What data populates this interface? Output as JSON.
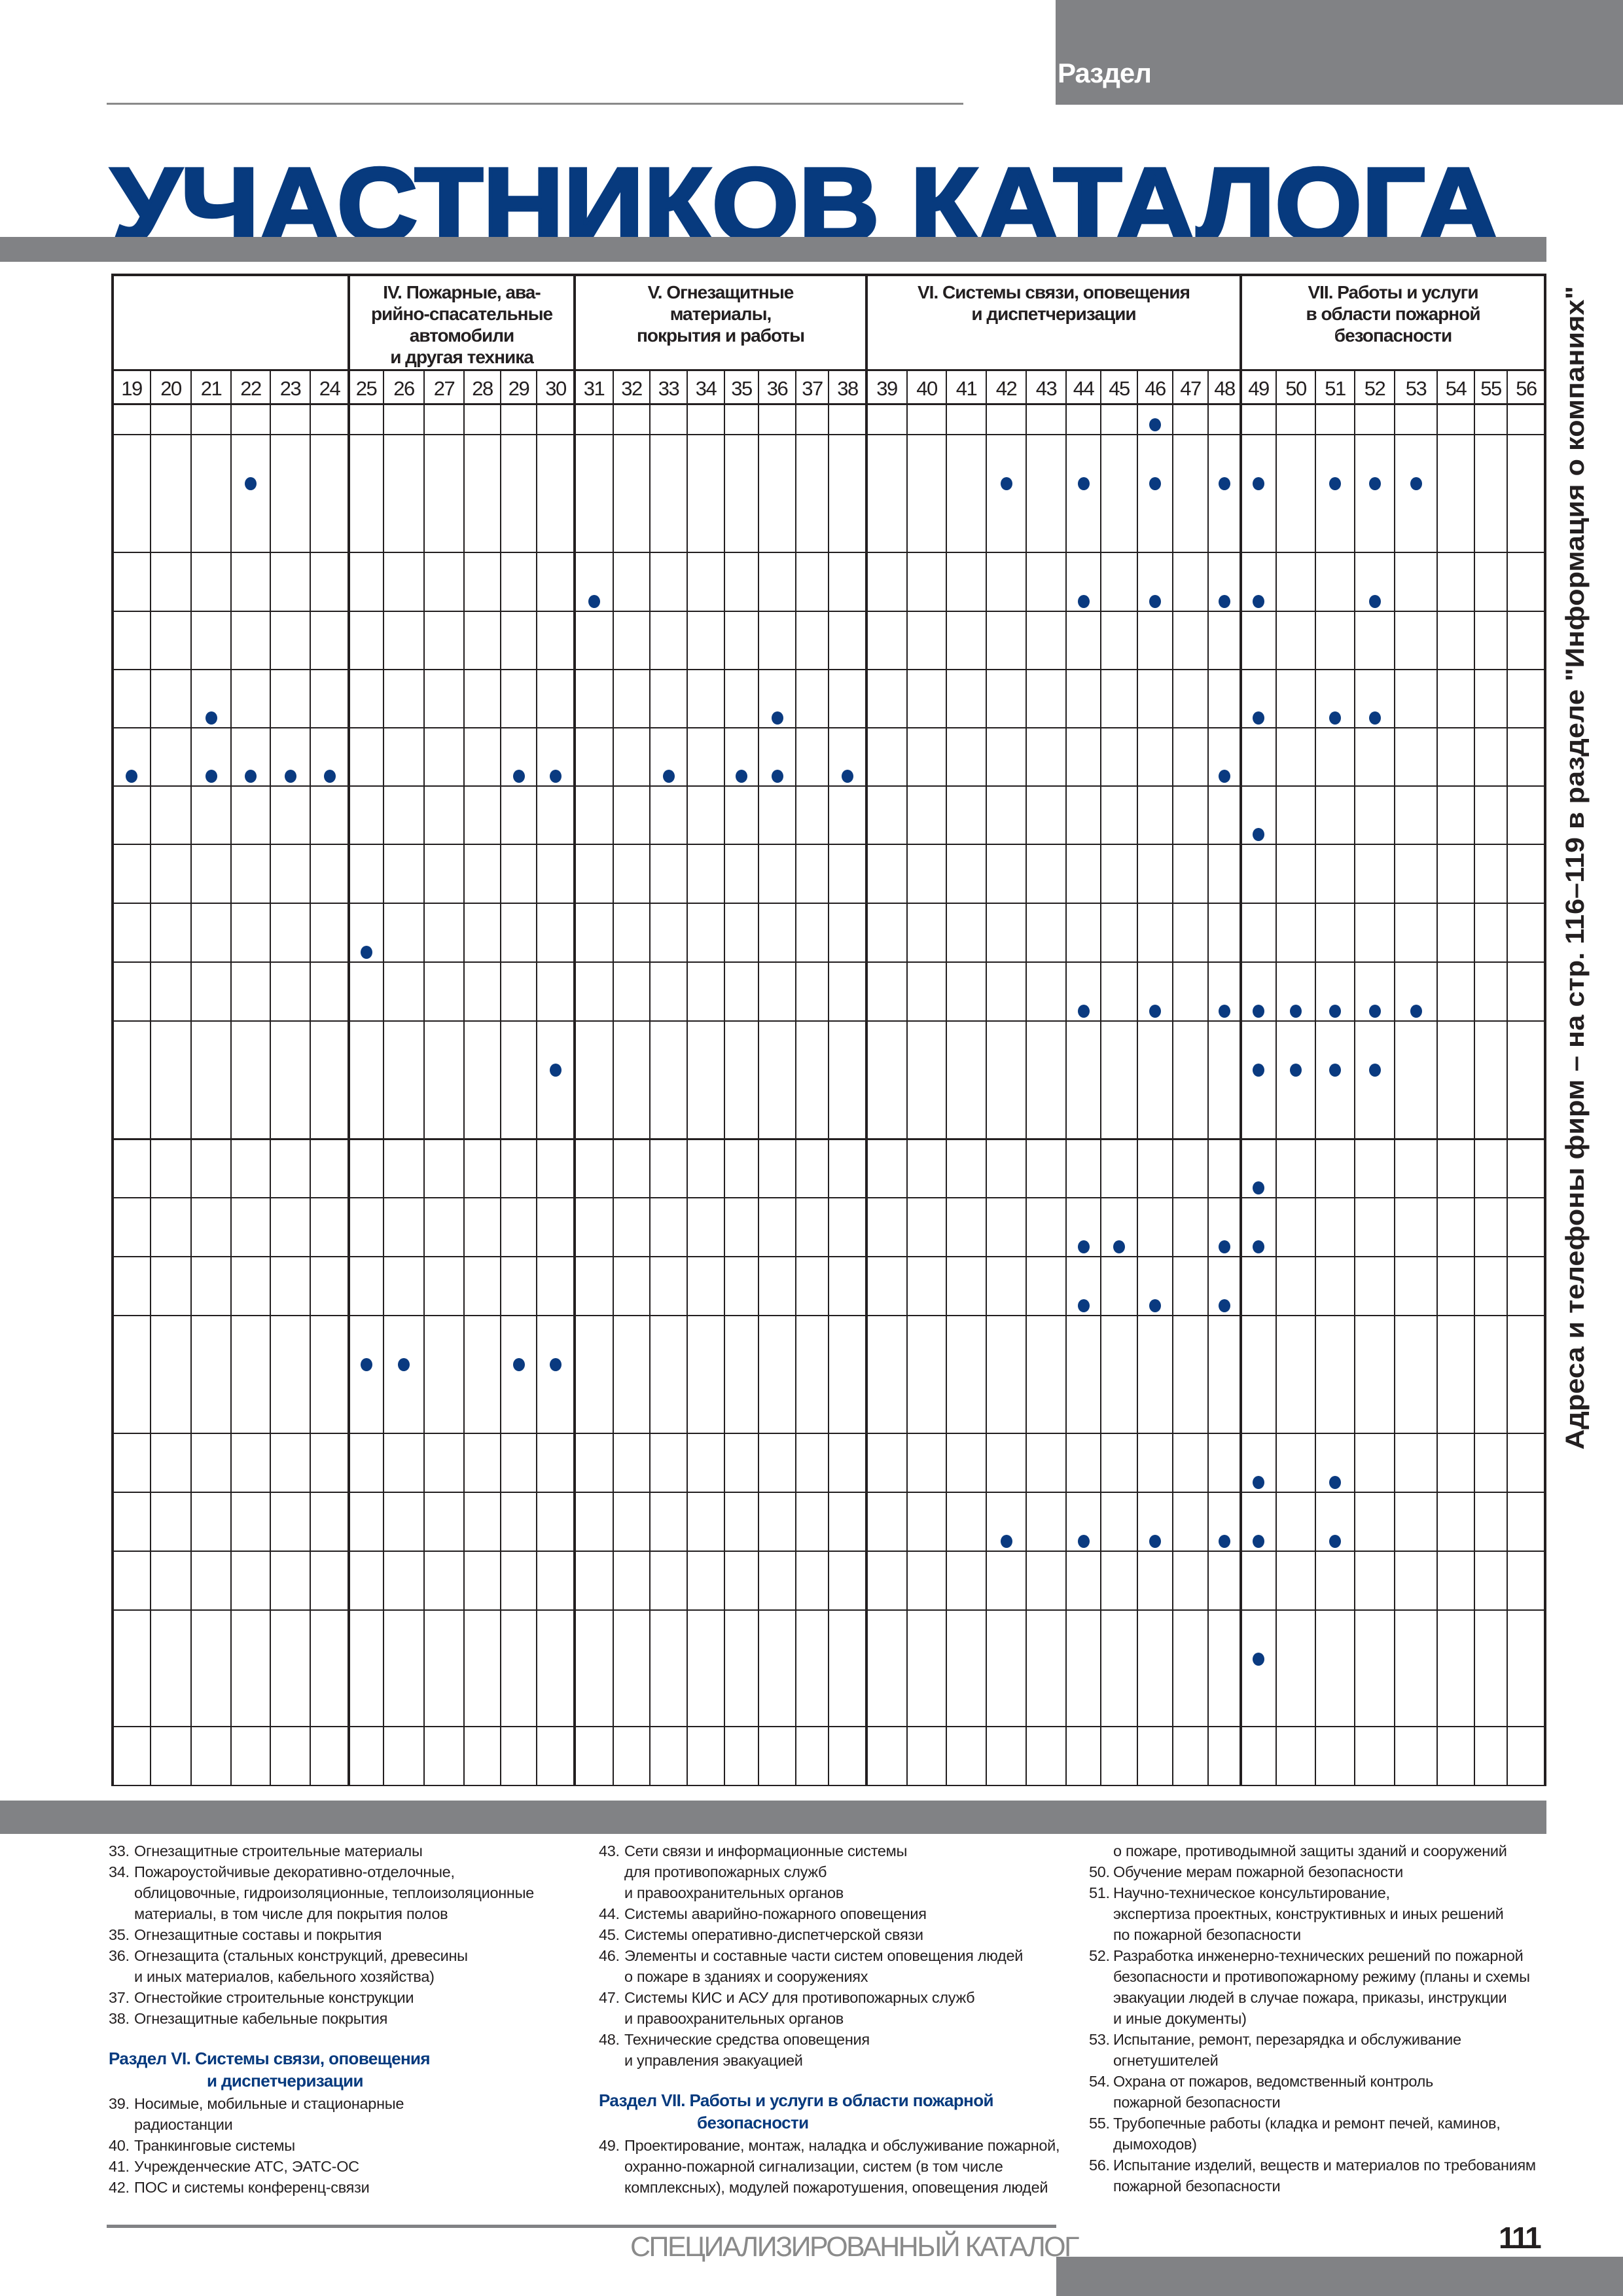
{
  "header": {
    "section_label": "Раздел",
    "title": "УЧАСТНИКОВ КАТАЛОГА",
    "side_note": "Адреса и телефоны фирм – на стр. 116–119 в разделе \"Информация о компаниях\""
  },
  "colors": {
    "accent_blue": "#073a7e",
    "dot": "#0a3a80",
    "band_gray": "#818285"
  },
  "table": {
    "groups": [
      {
        "label": "",
        "first": 19,
        "last": 24
      },
      {
        "label": "IV. Пожарные, ава-\nрийно-спасательные\nавтомобили\nи другая техника",
        "first": 25,
        "last": 30
      },
      {
        "label": "V. Огнезащитные\nматериалы,\nпокрытия и работы",
        "first": 31,
        "last": 38
      },
      {
        "label": "VI. Системы связи, оповещения\nи диспетчеризации",
        "first": 39,
        "last": 48
      },
      {
        "label": "VII. Работы и услуги\nв области пожарной\nбезопасности",
        "first": 49,
        "last": 56
      }
    ],
    "columns": [
      "19",
      "20",
      "21",
      "22",
      "23",
      "24",
      "25",
      "26",
      "27",
      "28",
      "29",
      "30",
      "31",
      "32",
      "33",
      "34",
      "35",
      "36",
      "37",
      "38",
      "39",
      "40",
      "41",
      "42",
      "43",
      "44",
      "45",
      "46",
      "47",
      "48",
      "49",
      "50",
      "51",
      "52",
      "53",
      "54",
      "55",
      "56"
    ],
    "rows_marked_columns": [
      [
        46
      ],
      [
        22,
        42,
        44,
        46,
        48,
        49,
        51,
        52,
        53
      ],
      [
        31,
        44,
        46,
        48,
        49,
        52
      ],
      [],
      [
        21,
        36,
        49,
        51,
        52
      ],
      [
        19,
        21,
        22,
        23,
        24,
        29,
        30,
        33,
        35,
        36,
        38,
        48
      ],
      [
        49
      ],
      [],
      [
        25
      ],
      [
        44,
        46,
        48,
        49,
        50,
        51,
        52,
        53
      ],
      [
        30,
        49,
        50,
        51,
        52
      ],
      [
        49
      ],
      [
        44,
        45,
        48,
        49
      ],
      [
        44,
        46,
        48
      ],
      [
        25,
        26,
        29,
        30
      ],
      [
        49,
        51
      ],
      [
        42,
        44,
        46,
        48,
        49,
        51
      ],
      [],
      [
        49
      ],
      []
    ]
  },
  "legend": {
    "columns": [
      [
        {
          "num": "33.",
          "lines": [
            "Огнезащитные строительные материалы"
          ]
        },
        {
          "num": "34.",
          "lines": [
            "Пожароустойчивые декоративно-отделочные,",
            "облицовочные, гидроизоляционные, теплоизоляционные",
            "материалы, в том числе для покрытия полов"
          ]
        },
        {
          "num": "35.",
          "lines": [
            "Огнезащитные составы и покрытия"
          ]
        },
        {
          "num": "36.",
          "lines": [
            "Огнезащита (стальных конструкций, древесины",
            "и иных материалов, кабельного хозяйства)"
          ]
        },
        {
          "num": "37.",
          "lines": [
            "Огнестойкие строительные конструкции"
          ]
        },
        {
          "num": "38.",
          "lines": [
            "Огнезащитные кабельные покрытия"
          ]
        },
        {
          "heading": [
            "Раздел VI. Системы связи, оповещения",
            "и диспетчеризации"
          ]
        },
        {
          "num": "39.",
          "lines": [
            "Носимые, мобильные и стационарные",
            "радиостанции"
          ]
        },
        {
          "num": "40.",
          "lines": [
            "Транкинговые системы"
          ]
        },
        {
          "num": "41.",
          "lines": [
            "Учрежденческие АТС, ЭАТС-ОС"
          ]
        },
        {
          "num": "42.",
          "lines": [
            "ПОС и системы конференц-связи"
          ]
        }
      ],
      [
        {
          "num": "43.",
          "lines": [
            "Сети связи и информационные системы",
            "для противопожарных служб",
            "и правоохранительных органов"
          ]
        },
        {
          "num": "44.",
          "lines": [
            "Системы аварийно-пожарного оповещения"
          ]
        },
        {
          "num": "45.",
          "lines": [
            "Системы оперативно-диспетчерской связи"
          ]
        },
        {
          "num": "46.",
          "lines": [
            "Элементы и составные части систем оповещения людей",
            "о пожаре в зданиях и сооружениях"
          ]
        },
        {
          "num": "47.",
          "lines": [
            "Системы КИС и АСУ для противопожарных служб",
            "и правоохранительных органов"
          ]
        },
        {
          "num": "48.",
          "lines": [
            "Технические средства оповещения",
            "и управления эвакуацией"
          ]
        },
        {
          "heading": [
            "Раздел VII. Работы и услуги в области пожарной",
            "безопасности"
          ]
        },
        {
          "num": "49.",
          "lines": [
            "Проектирование, монтаж, наладка и обслуживание пожарной,",
            "охранно-пожарной сигнализации, систем (в том числе",
            "комплексных), модулей пожаротушения, оповещения людей"
          ]
        }
      ],
      [
        {
          "num": "",
          "lines": [
            "о пожаре, противодымной защиты  зданий и сооружений"
          ]
        },
        {
          "num": "50.",
          "lines": [
            "Обучение мерам пожарной безопасности"
          ]
        },
        {
          "num": "51.",
          "lines": [
            "Научно-техническое консультирование,",
            "экспертиза проектных, конструктивных и иных решений",
            "по пожарной безопасности"
          ]
        },
        {
          "num": "52.",
          "lines": [
            "Разработка инженерно-технических решений по пожарной",
            "безопасности и противопожарному режиму (планы и схемы",
            "эвакуации людей в случае пожара, приказы, инструкции",
            "и иные документы)"
          ]
        },
        {
          "num": "53.",
          "lines": [
            "Испытание, ремонт, перезарядка и обслуживание",
            "огнетушителей"
          ]
        },
        {
          "num": "54.",
          "lines": [
            "Охрана от пожаров, ведомственный контроль",
            "пожарной безопасности"
          ]
        },
        {
          "num": "55.",
          "lines": [
            "Трубопечные работы (кладка и ремонт печей, каминов,",
            "дымоходов)"
          ]
        },
        {
          "num": "56.",
          "lines": [
            "Испытание изделий, веществ и материалов по требованиям",
            "пожарной безопасности"
          ]
        }
      ]
    ]
  },
  "footer": {
    "catalog_name": "СПЕЦИАЛИЗИРОВАННЫЙ КАТАЛОГ",
    "page_number": "111"
  }
}
